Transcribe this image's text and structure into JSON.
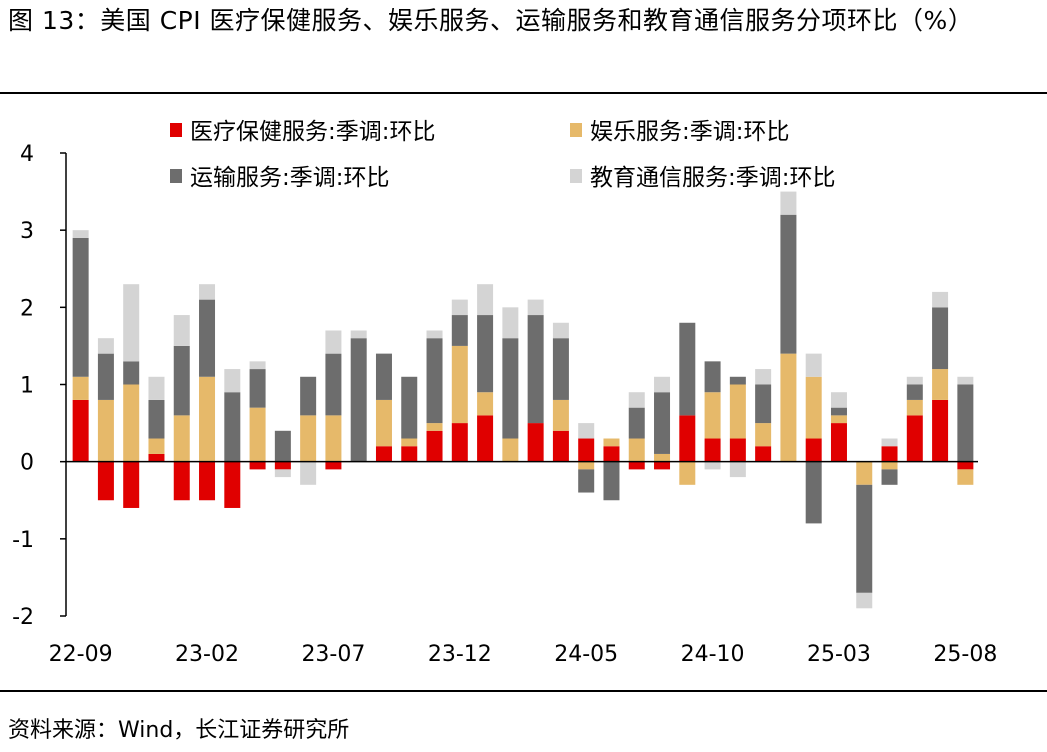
{
  "title": "图 13：美国 CPI 医疗保健服务、娱乐服务、运输服务和教育通信服务分项环比（%）",
  "source": "资料来源：Wind，长江证券研究所",
  "chart_data": {
    "type": "bar",
    "stacked": true,
    "ylim": [
      -2,
      4
    ],
    "yticks": [
      "4",
      "3",
      "2",
      "1",
      "0",
      "-1",
      "-2"
    ],
    "x_tick_labels": [
      "22-09",
      "23-02",
      "23-07",
      "23-12",
      "24-05",
      "24-10",
      "25-03",
      "25-08"
    ],
    "categories": [
      "22-09",
      "22-10",
      "22-11",
      "22-12",
      "23-01",
      "23-02",
      "23-03",
      "23-04",
      "23-05",
      "23-06",
      "23-07",
      "23-08",
      "23-09",
      "23-10",
      "23-11",
      "23-12",
      "24-01",
      "24-02",
      "24-03",
      "24-04",
      "24-05",
      "24-06",
      "24-07",
      "24-08",
      "24-09",
      "24-10",
      "24-11",
      "24-12",
      "25-01",
      "25-02",
      "25-03",
      "25-04",
      "25-05",
      "25-06",
      "25-07",
      "25-08"
    ],
    "legend_position": "top",
    "series": [
      {
        "name": "医疗保健服务:季调:环比",
        "color": "#e00000",
        "values": [
          0.8,
          -0.5,
          -0.6,
          0.1,
          -0.5,
          -0.5,
          -0.6,
          -0.1,
          -0.1,
          0,
          -0.1,
          0,
          0.2,
          0.2,
          0.4,
          0.5,
          0.6,
          0,
          0.5,
          0.4,
          0.3,
          0.2,
          -0.1,
          -0.1,
          0.6,
          0.3,
          0.3,
          0.2,
          0,
          0.3,
          0.5,
          0,
          0.2,
          0.6,
          0.8,
          -0.1
        ]
      },
      {
        "name": "娱乐服务:季调:环比",
        "color": "#e6b96a",
        "values": [
          0.3,
          0.8,
          1.0,
          0.2,
          0.6,
          1.1,
          0,
          0.7,
          0,
          0.6,
          0.6,
          0,
          0.6,
          0.1,
          0.1,
          1.0,
          0.3,
          0.3,
          0,
          0.4,
          -0.1,
          0.1,
          0.3,
          0.1,
          -0.3,
          0.6,
          0.7,
          0.3,
          1.4,
          0.8,
          0.1,
          -0.3,
          -0.1,
          0.2,
          0.4,
          -0.2
        ]
      },
      {
        "name": "运输服务:季调:环比",
        "color": "#6d6d6d",
        "values": [
          1.8,
          0.6,
          0.3,
          0.5,
          0.9,
          1.0,
          0.9,
          0.5,
          0.4,
          0.5,
          0.8,
          1.6,
          0.6,
          0.8,
          1.1,
          0.4,
          1.0,
          1.3,
          1.4,
          0.8,
          -0.3,
          -0.5,
          0.4,
          0.8,
          1.2,
          0.4,
          0.1,
          0.5,
          1.8,
          -0.8,
          0.1,
          -1.4,
          -0.2,
          0.2,
          0.8,
          1.0
        ]
      },
      {
        "name": "教育通信服务:季调:环比",
        "color": "#d4d4d4",
        "values": [
          0.1,
          0.2,
          1.0,
          0.3,
          0.4,
          0.2,
          0.3,
          0.1,
          -0.1,
          -0.3,
          0.3,
          0.1,
          0,
          0,
          0.1,
          0.2,
          0.4,
          0.4,
          0.2,
          0.2,
          0.2,
          0,
          0.2,
          0.2,
          0,
          -0.1,
          -0.2,
          0.2,
          0.3,
          0.3,
          0.2,
          -0.2,
          0.1,
          0.1,
          0.2,
          0.1
        ]
      }
    ]
  }
}
